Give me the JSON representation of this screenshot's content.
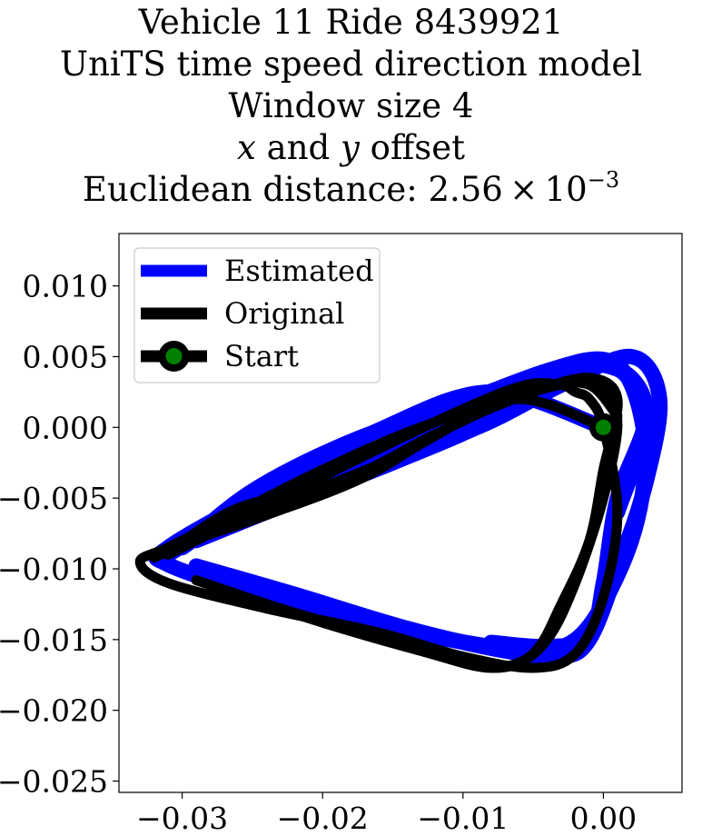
{
  "title": {
    "line1": "Vehicle 11 Ride 8439921",
    "line2": "UniTS time speed direction model",
    "line3": "Window size 4",
    "line4_var1": "x",
    "line4_and": " and ",
    "line4_var2": "y",
    "line4_rest": " offset",
    "line5_prefix": "Euclidean distance: 2.56 × 10",
    "line5_exponent": "−3"
  },
  "chart_data": {
    "type": "line",
    "xlim": [
      -0.0345,
      0.0056
    ],
    "ylim": [
      -0.0258,
      0.0137
    ],
    "x_ticks": [
      -0.03,
      -0.02,
      -0.01,
      0.0
    ],
    "x_tick_labels": [
      "−0.03",
      "−0.02",
      "−0.01",
      "0.00"
    ],
    "y_ticks": [
      0.01,
      0.005,
      0.0,
      -0.005,
      -0.01,
      -0.015,
      -0.02,
      -0.025
    ],
    "y_tick_labels": [
      "0.010",
      "0.005",
      "0.000",
      "−0.005",
      "−0.010",
      "−0.015",
      "−0.020",
      "−0.025"
    ],
    "grid": false,
    "legend_position": "top-left",
    "legend": [
      "Estimated",
      "Original",
      "Start"
    ],
    "colors": {
      "estimated": "#0000ff",
      "original": "#000000",
      "start_face": "#008000",
      "start_edge": "#000000"
    },
    "series": [
      {
        "name": "Estimated",
        "color": "#0000ff",
        "paths": [
          {
            "x": [
              0.0,
              -0.008,
              -0.016,
              -0.024,
              -0.031,
              -0.031,
              -0.024,
              -0.016,
              -0.008,
              -0.004,
              -0.001,
              0.002,
              0.003,
              0.002,
              0.0,
              -0.004,
              -0.01,
              -0.018,
              -0.025,
              -0.03
            ],
            "y": [
              0.0,
              0.0025,
              -0.0002,
              -0.0045,
              -0.0085,
              -0.0097,
              -0.012,
              -0.014,
              -0.0155,
              -0.0158,
              -0.014,
              -0.008,
              -0.002,
              0.003,
              0.0048,
              0.004,
              0.0018,
              -0.001,
              -0.0045,
              -0.0085
            ]
          },
          {
            "x": [
              -0.03,
              -0.026,
              -0.018,
              -0.01,
              -0.004,
              -0.001,
              0.002,
              0.003,
              0.001,
              0.0,
              -0.001,
              -0.004,
              -0.008
            ],
            "y": [
              -0.0085,
              -0.006,
              -0.003,
              0.0005,
              0.0035,
              0.0045,
              0.0035,
              0.0005,
              -0.005,
              -0.011,
              -0.0148,
              -0.0155,
              -0.0152
            ]
          },
          {
            "x": [
              -0.031,
              -0.025,
              -0.017,
              -0.009,
              -0.003,
              0.002,
              0.004,
              0.003,
              0.001,
              -0.001,
              -0.003,
              -0.007,
              -0.014,
              -0.022,
              -0.029
            ],
            "y": [
              -0.009,
              -0.0055,
              -0.0028,
              0.0,
              0.003,
              0.005,
              0.002,
              -0.004,
              -0.01,
              -0.015,
              -0.0162,
              -0.0158,
              -0.0142,
              -0.0118,
              -0.0098
            ]
          },
          {
            "x": [
              -0.029,
              -0.022,
              -0.015,
              -0.008,
              -0.002,
              0.001,
              0.003,
              0.001
            ],
            "y": [
              -0.008,
              -0.0052,
              -0.0025,
              0.0005,
              0.004,
              0.0042,
              0.0005,
              -0.006
            ]
          }
        ]
      },
      {
        "name": "Original",
        "color": "#000000",
        "paths": [
          {
            "x": [
              0.0,
              -0.006,
              -0.013,
              -0.02,
              -0.027,
              -0.031,
              -0.033,
              -0.031,
              -0.024,
              -0.016,
              -0.01,
              -0.005,
              -0.002,
              0.0,
              0.001,
              0.0,
              -0.001,
              -0.002,
              -0.003,
              -0.0055,
              -0.0095,
              -0.017,
              -0.025,
              -0.031
            ],
            "y": [
              0.0,
              0.002,
              0.0,
              -0.003,
              -0.0065,
              -0.0085,
              -0.0095,
              -0.011,
              -0.0128,
              -0.0145,
              -0.0162,
              -0.017,
              -0.016,
              -0.012,
              -0.006,
              0.0,
              0.002,
              0.0025,
              0.003,
              0.003,
              0.0015,
              -0.002,
              -0.006,
              -0.009
            ]
          },
          {
            "x": [
              -0.031,
              -0.026,
              -0.019,
              -0.012,
              -0.006,
              -0.002,
              0.0,
              0.001,
              0.0,
              -0.002,
              -0.004,
              -0.0065,
              -0.01,
              -0.016,
              -0.023,
              -0.029
            ],
            "y": [
              -0.0088,
              -0.0057,
              -0.004,
              -0.0005,
              0.0022,
              0.0032,
              0.0025,
              0.0002,
              -0.005,
              -0.011,
              -0.015,
              -0.0168,
              -0.0165,
              -0.0148,
              -0.0128,
              -0.0108
            ]
          },
          {
            "x": [
              -0.03,
              -0.024,
              -0.017,
              -0.011,
              -0.005,
              -0.001,
              0.001,
              0.0,
              -0.001,
              -0.003,
              -0.005,
              -0.008,
              -0.013,
              -0.02,
              -0.027
            ],
            "y": [
              -0.0082,
              -0.0062,
              -0.0035,
              0.0,
              0.0025,
              0.0035,
              0.002,
              -0.003,
              -0.008,
              -0.0125,
              -0.016,
              -0.017,
              -0.0158,
              -0.0138,
              -0.0115
            ]
          },
          {
            "x": [
              -0.032,
              -0.028,
              -0.022,
              -0.015,
              -0.009,
              -0.004,
              -0.001,
              0.001
            ],
            "y": [
              -0.0092,
              -0.0075,
              -0.005,
              -0.0022,
              0.001,
              0.0028,
              0.003,
              0.0008
            ]
          }
        ]
      }
    ],
    "start_point": {
      "name": "Start",
      "x": 0.0,
      "y": 0.0
    }
  }
}
